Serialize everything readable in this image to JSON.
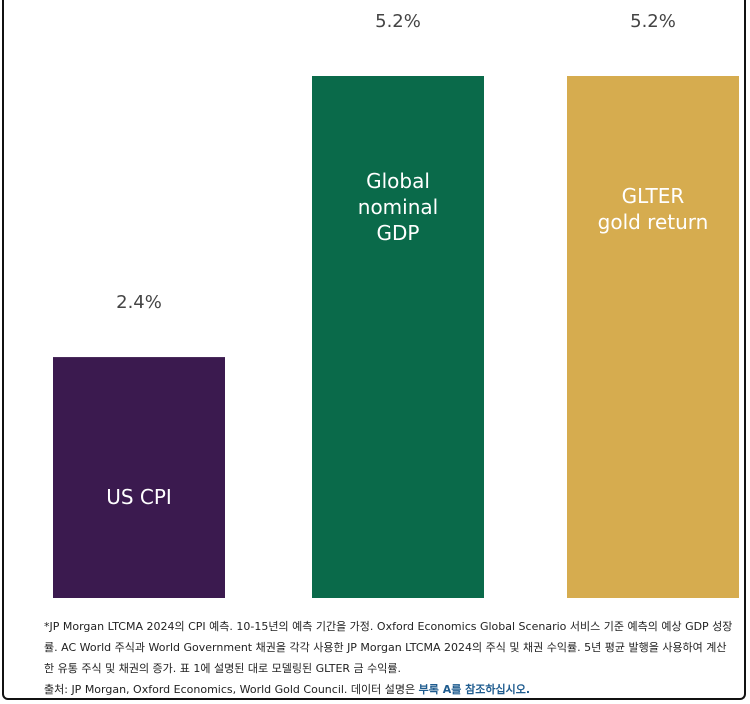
{
  "chart_data": {
    "type": "bar",
    "categories": [
      "US CPI",
      "Global nominal GDP",
      "GLTER gold return"
    ],
    "category_lines": [
      [
        "US CPI"
      ],
      [
        "Global",
        "nominal",
        "GDP"
      ],
      [
        "GLTER",
        "gold return"
      ]
    ],
    "values": [
      2.4,
      5.2,
      5.2
    ],
    "value_labels": [
      "2.4%",
      "5.2%",
      "5.2%"
    ],
    "colors": [
      "#3b1a4f",
      "#0a6a4a",
      "#d6ac4f"
    ],
    "ylim": [
      0,
      5.2
    ],
    "grid": false,
    "legend": "none"
  },
  "footnote": {
    "note": "*JP Morgan LTCMA 2024의 CPI 예측. 10-15년의 예측 기간을 가정. Oxford Economics Global Scenario 서비스 기준 예측의 예상 GDP 성장률. AC World 주식과 World Government 채권을 각각 사용한 JP Morgan LTCMA 2024의 주식 및 채권 수익률. 5년 평균 발행을 사용하여 계산한 유통 주식 및 채권의 증가. 표 1에 설명된 대로 모델링된 GLTER 금 수익률.",
    "source": "출처: JP Morgan, Oxford Economics, World Gold Council. 데이터 설명은 ",
    "source_link": "부록 A를 참조하십시오."
  }
}
